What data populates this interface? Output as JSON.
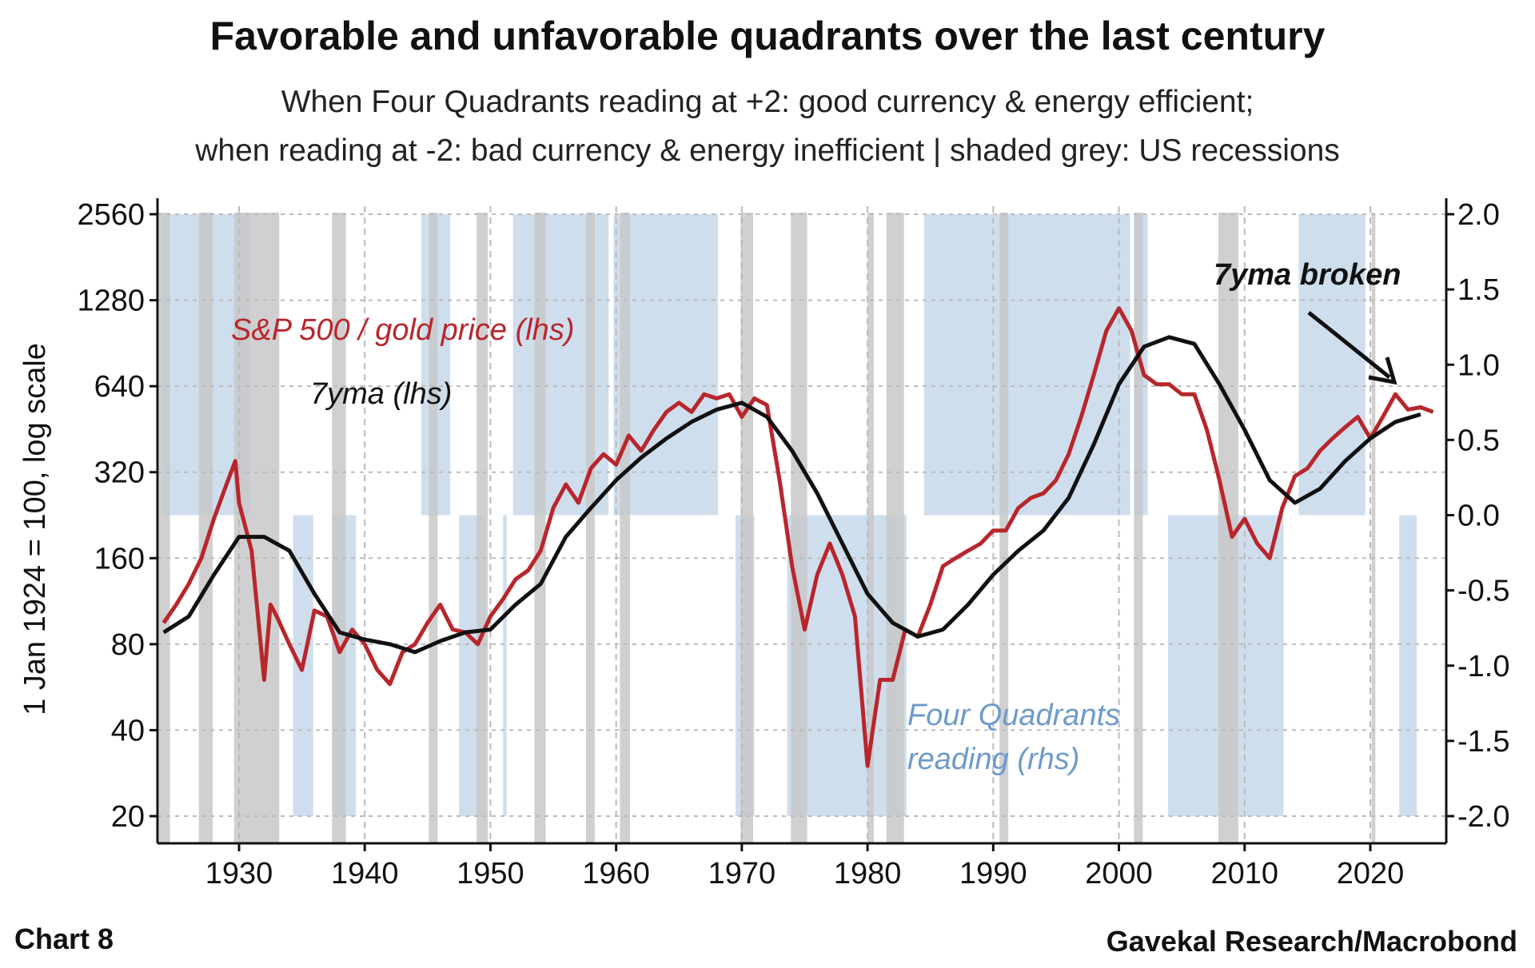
{
  "chart_data": {
    "type": "line",
    "title": "Favorable and unfavorable quadrants over the last century",
    "subtitle": [
      "When Four Quadrants reading at +2: good currency & energy efficient;",
      "when reading at -2: bad currency & energy inefficient | shaded grey: US recessions"
    ],
    "ylabel": "1 Jan 1924 = 100, log scale",
    "ylabel_right": "",
    "xlim": [
      1923.6,
      2025.2
    ],
    "ylim_left": [
      20,
      2560
    ],
    "ylim_right": [
      -2.0,
      2.0
    ],
    "x_ticks": [
      "1930",
      "1940",
      "1950",
      "1960",
      "1970",
      "1980",
      "1990",
      "2000",
      "2010",
      "2020"
    ],
    "y_ticks_left": [
      "2560",
      "1280",
      "640",
      "320",
      "160",
      "80",
      "40",
      "20"
    ],
    "y_ticks_right": [
      "2.0",
      "1.5",
      "1.0",
      "0.5",
      "0.0",
      "-0.5",
      "-1.0",
      "-1.5",
      "-2.0"
    ],
    "grid": true,
    "recessions": [
      [
        1923.6,
        1924.5
      ],
      [
        1926.8,
        1927.9
      ],
      [
        1929.6,
        1933.2
      ],
      [
        1937.4,
        1938.5
      ],
      [
        1945.1,
        1945.8
      ],
      [
        1948.9,
        1949.8
      ],
      [
        1953.5,
        1954.4
      ],
      [
        1957.6,
        1958.3
      ],
      [
        1960.3,
        1961.1
      ],
      [
        1969.9,
        1970.9
      ],
      [
        1973.9,
        1975.2
      ],
      [
        1980.0,
        1980.5
      ],
      [
        1981.5,
        1982.9
      ],
      [
        1990.5,
        1991.2
      ],
      [
        2001.2,
        2001.9
      ],
      [
        2007.9,
        2009.5
      ],
      [
        2020.1,
        2020.4
      ]
    ],
    "four_quadrants": [
      {
        "from": 1923.9,
        "to": 1930.9,
        "value": 2
      },
      {
        "from": 1944.5,
        "to": 1946.8,
        "value": 2
      },
      {
        "from": 1951.8,
        "to": 1959.4,
        "value": 2
      },
      {
        "from": 1959.8,
        "to": 1968.1,
        "value": 2
      },
      {
        "from": 1984.5,
        "to": 2000.9,
        "value": 2
      },
      {
        "from": 2001.2,
        "to": 2002.3,
        "value": 2
      },
      {
        "from": 2014.3,
        "to": 2019.6,
        "value": 2
      },
      {
        "from": 1934.3,
        "to": 1935.9,
        "value": -2
      },
      {
        "from": 1937.4,
        "to": 1939.3,
        "value": -2
      },
      {
        "from": 1947.5,
        "to": 1949.6,
        "value": -2
      },
      {
        "from": 1951.0,
        "to": 1951.3,
        "value": -2
      },
      {
        "from": 1969.5,
        "to": 1971.0,
        "value": -2
      },
      {
        "from": 1973.6,
        "to": 1983.1,
        "value": -2
      },
      {
        "from": 2003.9,
        "to": 2013.1,
        "value": -2
      },
      {
        "from": 2022.3,
        "to": 2023.7,
        "value": -2
      }
    ],
    "series": [
      {
        "name": "S&P 500 / gold price (lhs)",
        "color": "#b8262c",
        "axis": "left",
        "x": [
          1924,
          1925,
          1926,
          1927,
          1928,
          1929,
          1929.7,
          1930,
          1931,
          1932,
          1932.5,
          1933,
          1934,
          1935,
          1936,
          1937,
          1938,
          1939,
          1940,
          1941,
          1942,
          1943,
          1944,
          1945,
          1946,
          1947,
          1948,
          1949,
          1950,
          1951,
          1952,
          1953,
          1954,
          1955,
          1956,
          1957,
          1958,
          1959,
          1960,
          1961,
          1962,
          1963,
          1964,
          1965,
          1966,
          1967,
          1968,
          1969,
          1970,
          1971,
          1972,
          1973,
          1974,
          1975,
          1976,
          1977,
          1978,
          1979,
          1980,
          1981,
          1982,
          1983,
          1984,
          1985,
          1986,
          1987,
          1988,
          1989,
          1990,
          1991,
          1992,
          1993,
          1994,
          1995,
          1996,
          1997,
          1998,
          1999,
          2000,
          2001,
          2002,
          2003,
          2004,
          2005,
          2006,
          2007,
          2008,
          2009,
          2010,
          2011,
          2012,
          2013,
          2014,
          2015,
          2016,
          2017,
          2018,
          2019,
          2020,
          2021,
          2022,
          2023,
          2024,
          2025
        ],
        "y": [
          95,
          110,
          130,
          160,
          220,
          290,
          350,
          250,
          170,
          60,
          110,
          100,
          80,
          65,
          105,
          100,
          75,
          90,
          80,
          65,
          58,
          75,
          80,
          95,
          110,
          90,
          88,
          80,
          100,
          115,
          135,
          145,
          170,
          240,
          290,
          250,
          330,
          370,
          340,
          430,
          380,
          450,
          520,
          560,
          520,
          600,
          580,
          600,
          500,
          580,
          550,
          300,
          150,
          90,
          140,
          180,
          140,
          100,
          30,
          60,
          60,
          90,
          85,
          110,
          150,
          160,
          170,
          180,
          200,
          200,
          240,
          260,
          270,
          300,
          370,
          500,
          700,
          1000,
          1200,
          1000,
          700,
          650,
          650,
          600,
          600,
          450,
          300,
          190,
          220,
          180,
          160,
          240,
          310,
          330,
          380,
          420,
          460,
          500,
          420,
          500,
          600,
          530,
          540,
          520
        ]
      },
      {
        "name": "7yma (lhs)",
        "color": "#111111",
        "axis": "left",
        "x": [
          1924,
          1926,
          1928,
          1930,
          1932,
          1934,
          1936,
          1938,
          1940,
          1942,
          1944,
          1946,
          1948,
          1950,
          1952,
          1954,
          1956,
          1958,
          1960,
          1962,
          1964,
          1966,
          1968,
          1970,
          1972,
          1974,
          1976,
          1978,
          1980,
          1982,
          1984,
          1986,
          1988,
          1990,
          1992,
          1994,
          1996,
          1998,
          2000,
          2002,
          2004,
          2006,
          2008,
          2010,
          2012,
          2014,
          2016,
          2018,
          2020,
          2022,
          2024
        ],
        "y": [
          88,
          100,
          140,
          190,
          190,
          170,
          120,
          88,
          83,
          80,
          75,
          82,
          88,
          90,
          110,
          130,
          190,
          240,
          300,
          360,
          420,
          480,
          530,
          560,
          500,
          380,
          270,
          180,
          120,
          95,
          85,
          90,
          110,
          140,
          170,
          200,
          260,
          400,
          650,
          880,
          950,
          900,
          650,
          450,
          300,
          250,
          280,
          350,
          420,
          480,
          510
        ]
      }
    ],
    "annotations": {
      "sp_gold": "S&P 500 / gold price (lhs)",
      "ma": "7yma (lhs)",
      "fq1": "Four Quadrants",
      "fq2": "reading (rhs)",
      "broken": "7yma broken"
    },
    "colors": {
      "recession": "#c8c8c8",
      "quadrant": "#cfdeed",
      "annotation_blue": "#6e9acb"
    }
  },
  "footer": {
    "left": "Chart 8",
    "right": "Gavekal Research/Macrobond"
  }
}
